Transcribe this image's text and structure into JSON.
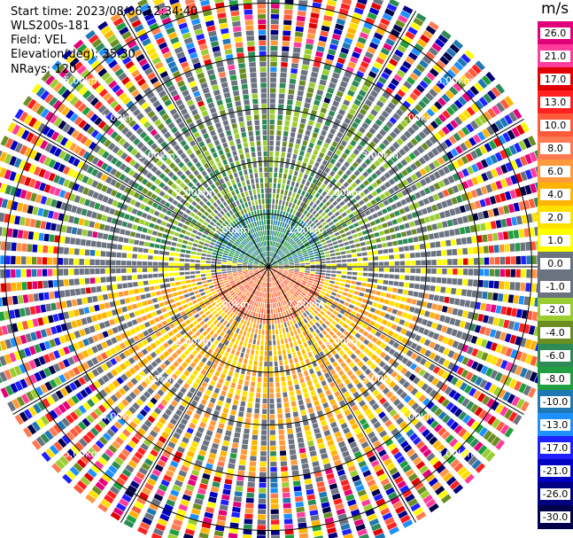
{
  "header": {
    "start_time": "Start time: 2023/08/06 12:34:40",
    "instrument": "WLS200s-181",
    "field": "Field: VEL",
    "elevation": "Elevation(deg): 35.30",
    "nrays": "NRays: 120"
  },
  "colorbar": {
    "unit": "m/s",
    "labels": [
      "26.0",
      "21.0",
      "17.0",
      "13.0",
      "10.0",
      "8.0",
      "6.0",
      "4.0",
      "2.0",
      "1.0",
      "0.0",
      "-1.0",
      "-2.0",
      "-4.0",
      "-6.0",
      "-8.0",
      "-10.0",
      "-13.0",
      "-17.0",
      "-21.0",
      "-26.0",
      "-30.0"
    ],
    "colors": [
      "#e2007a",
      "#ff3c9c",
      "#e00000",
      "#ff2020",
      "#ff5a3c",
      "#ff7a50",
      "#ff9a3c",
      "#ffb400",
      "#ffe000",
      "#ffff00",
      "#6b7280",
      "#6b7280",
      "#9acd32",
      "#6b8e23",
      "#2e8b57",
      "#1f9f3f",
      "#1f77b4",
      "#1e90ff",
      "#2020ff",
      "#0000c0",
      "#000080",
      "#00004a"
    ]
  },
  "chart_data": {
    "type": "ppi-polar",
    "field": "VEL",
    "units": "m/s",
    "nrays": 120,
    "elevation_deg": 35.3,
    "vmin": -30,
    "vmax": 26,
    "range_rings_km": [
      1,
      2,
      3,
      4,
      5
    ],
    "range_ring_labels": [
      "1.00km",
      "2.00km",
      "3.00km",
      "4.00km",
      "5.00km"
    ],
    "pattern": {
      "description": "wind blowing toward radar in the north half (green/blue), away in the south half (yellow/orange), grey near zero on the east-west axis, noisy random colors at far ranges",
      "core_max_km": 1.1,
      "inner_max_km": 3.8,
      "noise_start_km": 4.0,
      "max_range_km": 5.6,
      "north_core_values": [
        -10,
        -8,
        -6
      ],
      "north_inner_values": [
        -6,
        -4,
        -2
      ],
      "south_core_values": [
        10,
        8,
        6
      ],
      "south_inner_values": [
        6,
        4,
        2
      ],
      "axis_values": [
        0,
        -1,
        1
      ]
    }
  }
}
